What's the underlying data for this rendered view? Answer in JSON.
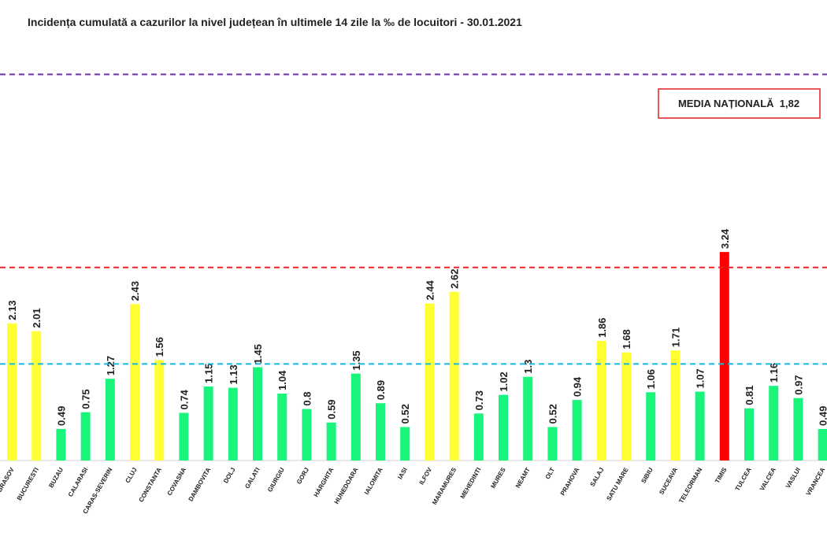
{
  "chart_data": {
    "type": "bar",
    "title": "Incidența cumulată a cazurilor la nivel județean în ultimele 14 zile la ‰ de locuitori - 30.01.2021",
    "annotation": "MEDIA NAȚIONALĂ  1,82",
    "categories": [
      "BRASOV",
      "BUCURESTI",
      "BUZAU",
      "CALARASI",
      "CARAS-SEVERIN",
      "CLUJ",
      "CONSTANTA",
      "COVASNA",
      "DAMBOVITA",
      "DOLJ",
      "GALATI",
      "GIURGIU",
      "GORJ",
      "HARGHITA",
      "HUNEDOARA",
      "IALOMITA",
      "IASI",
      "ILFOV",
      "MARAMURES",
      "MEHEDINTI",
      "MURES",
      "NEAMT",
      "OLT",
      "PRAHOVA",
      "SALAJ",
      "SATU MARE",
      "SIBIU",
      "SUCEAVA",
      "TELEORMAN",
      "TIMIS",
      "TULCEA",
      "VALCEA",
      "VASLUI",
      "VRANCEA"
    ],
    "values": [
      2.13,
      2.01,
      0.49,
      0.75,
      1.27,
      2.43,
      1.56,
      0.74,
      1.15,
      1.13,
      1.45,
      1.04,
      0.8,
      0.59,
      1.35,
      0.89,
      0.52,
      2.44,
      2.62,
      0.73,
      1.02,
      1.3,
      0.52,
      0.94,
      1.86,
      1.68,
      1.06,
      1.71,
      1.07,
      3.24,
      0.81,
      1.16,
      0.97,
      0.49
    ],
    "colors": [
      "#ffff33",
      "#ffff33",
      "#19f57a",
      "#19f57a",
      "#19f57a",
      "#ffff33",
      "#ffff33",
      "#19f57a",
      "#19f57a",
      "#19f57a",
      "#19f57a",
      "#19f57a",
      "#19f57a",
      "#19f57a",
      "#19f57a",
      "#19f57a",
      "#19f57a",
      "#ffff33",
      "#ffff33",
      "#19f57a",
      "#19f57a",
      "#19f57a",
      "#19f57a",
      "#19f57a",
      "#ffff33",
      "#ffff33",
      "#19f57a",
      "#ffff33",
      "#19f57a",
      "#ff0000",
      "#19f57a",
      "#19f57a",
      "#19f57a",
      "#19f57a"
    ],
    "reference_lines": [
      {
        "value": 1.5,
        "color": "#22b5d8"
      },
      {
        "value": 3,
        "color": "#e8262a"
      },
      {
        "value": 6,
        "color": "#7030a0"
      }
    ],
    "ylim": [
      0,
      6.3
    ]
  }
}
